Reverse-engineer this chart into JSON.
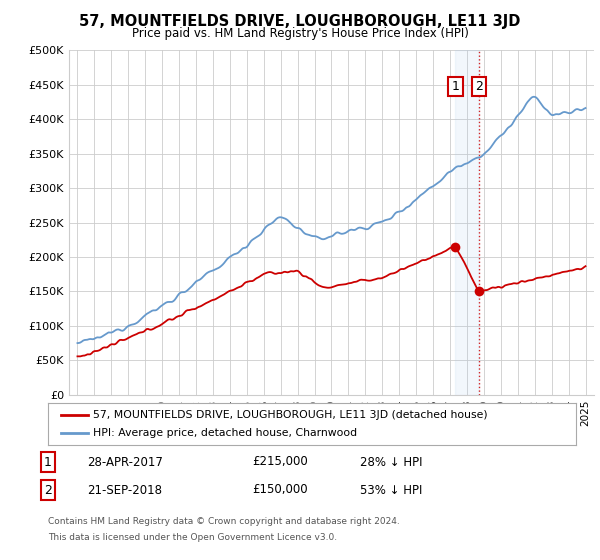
{
  "title": "57, MOUNTFIELDS DRIVE, LOUGHBOROUGH, LE11 3JD",
  "subtitle": "Price paid vs. HM Land Registry's House Price Index (HPI)",
  "ylabel_ticks": [
    "£0",
    "£50K",
    "£100K",
    "£150K",
    "£200K",
    "£250K",
    "£300K",
    "£350K",
    "£400K",
    "£450K",
    "£500K"
  ],
  "ytick_values": [
    0,
    50000,
    100000,
    150000,
    200000,
    250000,
    300000,
    350000,
    400000,
    450000,
    500000
  ],
  "xlim": [
    1994.5,
    2025.5
  ],
  "ylim": [
    0,
    500000
  ],
  "sale1_x": 2017.32,
  "sale1_price": 215000,
  "sale1_date": "28-APR-2017",
  "sale1_pct": "28% ↓ HPI",
  "sale2_x": 2018.72,
  "sale2_price": 150000,
  "sale2_date": "21-SEP-2018",
  "sale2_pct": "53% ↓ HPI",
  "legend_label_red": "57, MOUNTFIELDS DRIVE, LOUGHBOROUGH, LE11 3JD (detached house)",
  "legend_label_blue": "HPI: Average price, detached house, Charnwood",
  "footer_line1": "Contains HM Land Registry data © Crown copyright and database right 2024.",
  "footer_line2": "This data is licensed under the Open Government Licence v3.0.",
  "red_color": "#cc0000",
  "blue_color": "#6699cc",
  "shade_color": "#aaccee",
  "background_color": "#ffffff",
  "grid_color": "#cccccc",
  "label_box_color": "#cc0000"
}
